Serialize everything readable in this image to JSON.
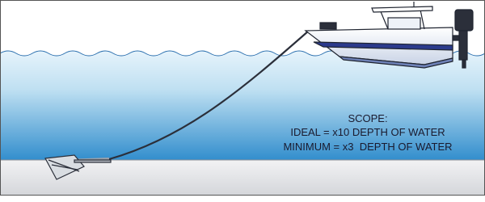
{
  "annotation": {
    "title": "SCOPE:",
    "lines": [
      "IDEAL = x10 DEPTH OF WATER",
      "MINIMUM = x3  DEPTH OF WATER"
    ]
  }
}
